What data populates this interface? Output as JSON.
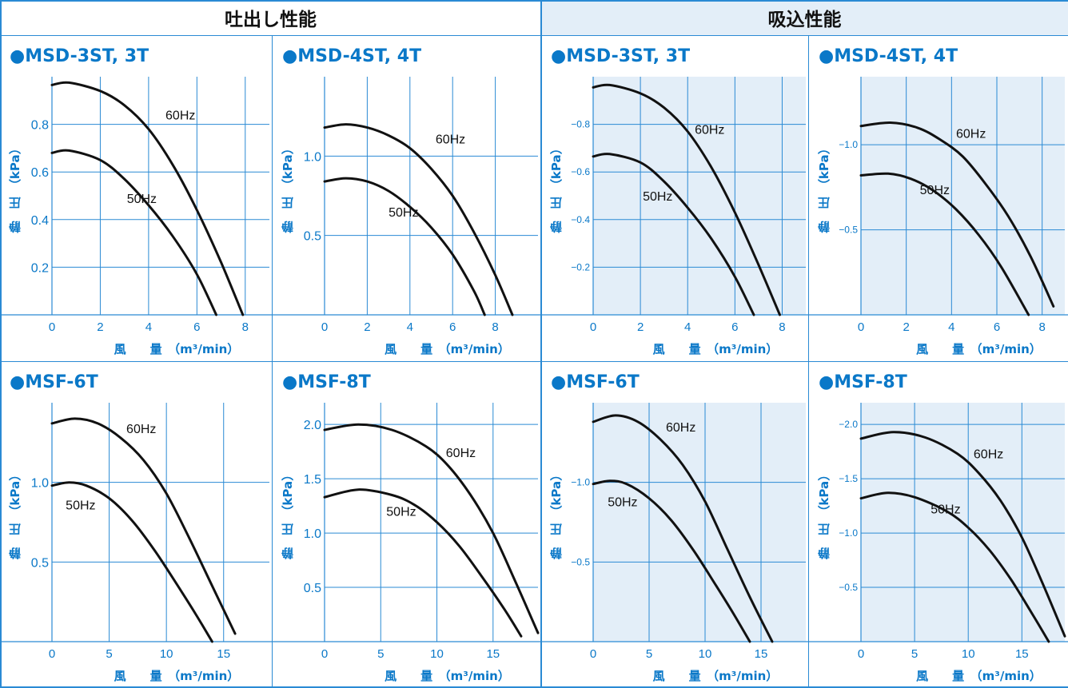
{
  "sections": {
    "discharge": "吐出し性能",
    "suction": "吸込性能"
  },
  "colors": {
    "accent": "#0a78c8",
    "grid": "#2a8ad4",
    "suction_bg": "#e3eef8",
    "curve": "#111111"
  },
  "chart_data": [
    {
      "type": "line",
      "title": "●MSD-3ST, 3T",
      "section": "吐出し性能",
      "xlabel": "風　　量　（m³/min）",
      "ylabel": "静　圧　（kPa）",
      "xlim": [
        0,
        9
      ],
      "ylim": [
        0,
        1.0
      ],
      "xticks": [
        0,
        2,
        4,
        6,
        8
      ],
      "yticks": [
        0.2,
        0.4,
        0.6,
        0.8
      ],
      "series": [
        {
          "name": "60Hz",
          "label_at": [
            4.7,
            0.82
          ],
          "x": [
            0,
            0.7,
            2,
            3,
            4,
            5,
            6,
            7,
            7.9
          ],
          "y": [
            0.965,
            0.975,
            0.94,
            0.88,
            0.78,
            0.63,
            0.44,
            0.22,
            0.0
          ]
        },
        {
          "name": "50Hz",
          "label_at": [
            3.1,
            0.47
          ],
          "x": [
            0,
            0.7,
            2,
            3,
            4,
            5,
            6,
            6.8
          ],
          "y": [
            0.68,
            0.69,
            0.65,
            0.57,
            0.46,
            0.33,
            0.17,
            0.0
          ]
        }
      ]
    },
    {
      "type": "line",
      "title": "●MSD-4ST, 4T",
      "section": "吐出し性能",
      "xlabel": "風　　量　（m³/min）",
      "ylabel": "静　圧　（kPa）",
      "xlim": [
        0,
        10
      ],
      "ylim": [
        0,
        1.5
      ],
      "xticks": [
        0,
        2,
        4,
        6,
        8
      ],
      "yticks": [
        0.5,
        1.0
      ],
      "series": [
        {
          "name": "60Hz",
          "label_at": [
            5.2,
            1.08
          ],
          "x": [
            0,
            1,
            2,
            3,
            4,
            5,
            6,
            7,
            8,
            8.8
          ],
          "y": [
            1.18,
            1.2,
            1.18,
            1.13,
            1.05,
            0.92,
            0.75,
            0.52,
            0.25,
            0.0
          ]
        },
        {
          "name": "50Hz",
          "label_at": [
            3.0,
            0.62
          ],
          "x": [
            0,
            1,
            2,
            3,
            4,
            5,
            6,
            7,
            7.5
          ],
          "y": [
            0.84,
            0.86,
            0.84,
            0.78,
            0.68,
            0.55,
            0.38,
            0.15,
            0.0
          ]
        }
      ]
    },
    {
      "type": "line",
      "title": "●MSD-3ST, 3T",
      "section": "吸込性能",
      "xlabel": "風　　量　（m³/min）",
      "ylabel": "静　圧　（kPa）",
      "xlim": [
        0,
        9
      ],
      "ylim": [
        -1.0,
        0
      ],
      "xticks": [
        0,
        2,
        4,
        6,
        8
      ],
      "yticks": [
        -0.2,
        -0.4,
        -0.6,
        -0.8
      ],
      "series": [
        {
          "name": "60Hz",
          "label_at": [
            4.3,
            -0.76
          ],
          "x": [
            0,
            0.7,
            2,
            3,
            4,
            5,
            6,
            7,
            7.9
          ],
          "y": [
            -0.955,
            -0.965,
            -0.93,
            -0.87,
            -0.77,
            -0.62,
            -0.43,
            -0.21,
            0.0
          ]
        },
        {
          "name": "50Hz",
          "label_at": [
            2.1,
            -0.48
          ],
          "x": [
            0,
            0.7,
            2,
            3,
            4,
            5,
            6,
            6.8
          ],
          "y": [
            -0.665,
            -0.675,
            -0.64,
            -0.56,
            -0.45,
            -0.32,
            -0.16,
            0.0
          ]
        }
      ]
    },
    {
      "type": "line",
      "title": "●MSD-4ST, 4T",
      "section": "吸込性能",
      "xlabel": "風　　量　（m³/min）",
      "ylabel": "静　圧　（kPa）",
      "xlim": [
        0,
        9
      ],
      "ylim": [
        -1.4,
        0
      ],
      "xticks": [
        0,
        2,
        4,
        6,
        8
      ],
      "yticks": [
        -0.5,
        -1.0
      ],
      "series": [
        {
          "name": "60Hz",
          "label_at": [
            4.2,
            -1.04
          ],
          "x": [
            0,
            1.3,
            2.5,
            3.5,
            4.5,
            5.5,
            6.5,
            7.5,
            8.5
          ],
          "y": [
            -1.11,
            -1.13,
            -1.1,
            -1.03,
            -0.93,
            -0.77,
            -0.58,
            -0.34,
            -0.05
          ]
        },
        {
          "name": "50Hz",
          "label_at": [
            2.6,
            -0.71
          ],
          "x": [
            0,
            1.2,
            2.2,
            3.2,
            4.2,
            5.2,
            6.2,
            7.4
          ],
          "y": [
            -0.82,
            -0.83,
            -0.8,
            -0.73,
            -0.62,
            -0.47,
            -0.28,
            0.0
          ]
        }
      ]
    },
    {
      "type": "line",
      "title": "●MSF-6T",
      "section": "吐出し性能",
      "xlabel": "風　　量　（m³/min）",
      "ylabel": "静　圧　（kPa）",
      "xlim": [
        0,
        19
      ],
      "ylim": [
        0,
        1.5
      ],
      "xticks": [
        0,
        5,
        10,
        15
      ],
      "yticks": [
        0.5,
        1.0
      ],
      "series": [
        {
          "name": "60Hz",
          "label_at": [
            6.5,
            1.31
          ],
          "x": [
            0,
            2,
            4,
            6,
            8,
            10,
            12,
            14,
            16
          ],
          "y": [
            1.37,
            1.4,
            1.37,
            1.28,
            1.14,
            0.93,
            0.65,
            0.35,
            0.05
          ]
        },
        {
          "name": "50Hz",
          "label_at": [
            1.2,
            0.83
          ],
          "x": [
            0,
            1.5,
            3,
            5,
            7,
            9,
            11,
            12.5,
            14
          ],
          "y": [
            0.98,
            1.0,
            0.98,
            0.9,
            0.76,
            0.57,
            0.35,
            0.18,
            0.0
          ]
        }
      ]
    },
    {
      "type": "line",
      "title": "●MSF-8T",
      "section": "吐出し性能",
      "xlabel": "風　　量　（m³/min）",
      "ylabel": "静　圧　（kPa）",
      "xlim": [
        0,
        19
      ],
      "ylim": [
        0,
        2.2
      ],
      "xticks": [
        0,
        5,
        10,
        15
      ],
      "yticks": [
        0.5,
        1.0,
        1.5,
        2.0
      ],
      "series": [
        {
          "name": "60Hz",
          "label_at": [
            10.8,
            1.7
          ],
          "x": [
            0,
            3,
            6,
            9,
            11,
            13,
            15,
            17,
            19
          ],
          "y": [
            1.95,
            2.0,
            1.95,
            1.8,
            1.62,
            1.35,
            1.0,
            0.55,
            0.08
          ]
        },
        {
          "name": "50Hz",
          "label_at": [
            5.5,
            1.16
          ],
          "x": [
            0,
            3,
            6,
            8,
            10,
            12,
            14,
            16,
            17.5
          ],
          "y": [
            1.33,
            1.4,
            1.35,
            1.26,
            1.1,
            0.88,
            0.6,
            0.3,
            0.05
          ]
        }
      ]
    },
    {
      "type": "line",
      "title": "●MSF-6T",
      "section": "吸込性能",
      "xlabel": "風　　量　（m³/min）",
      "ylabel": "静　圧　（kPa）",
      "xlim": [
        0,
        19
      ],
      "ylim": [
        -1.5,
        0
      ],
      "xticks": [
        0,
        5,
        10,
        15
      ],
      "yticks": [
        -0.5,
        -1.0
      ],
      "series": [
        {
          "name": "60Hz",
          "label_at": [
            6.5,
            -1.32
          ],
          "x": [
            0,
            2,
            4,
            6,
            8,
            10,
            12,
            14,
            16
          ],
          "y": [
            -1.38,
            -1.42,
            -1.38,
            -1.27,
            -1.11,
            -0.88,
            -0.58,
            -0.28,
            0.0
          ]
        },
        {
          "name": "50Hz",
          "label_at": [
            1.3,
            -0.85
          ],
          "x": [
            0,
            1.5,
            3,
            5,
            7,
            9,
            11,
            12.5,
            14
          ],
          "y": [
            -0.99,
            -1.01,
            -0.99,
            -0.9,
            -0.76,
            -0.57,
            -0.35,
            -0.18,
            0.0
          ]
        }
      ]
    },
    {
      "type": "line",
      "title": "●MSF-8T",
      "section": "吸込性能",
      "xlabel": "風　　量　（m³/min）",
      "ylabel": "静　圧　（kPa）",
      "xlim": [
        0,
        19
      ],
      "ylim": [
        -2.2,
        0
      ],
      "xticks": [
        0,
        5,
        10,
        15
      ],
      "yticks": [
        -0.5,
        -1.0,
        -1.5,
        -2.0
      ],
      "series": [
        {
          "name": "60Hz",
          "label_at": [
            10.5,
            -1.69
          ],
          "x": [
            0,
            3,
            6,
            9,
            11,
            13,
            15,
            17,
            19
          ],
          "y": [
            -1.87,
            -1.93,
            -1.88,
            -1.73,
            -1.55,
            -1.3,
            -0.96,
            -0.52,
            -0.05
          ]
        },
        {
          "name": "50Hz",
          "label_at": [
            6.5,
            -1.18
          ],
          "x": [
            0,
            2.5,
            5,
            8,
            10,
            12,
            14,
            16,
            17.5
          ],
          "y": [
            -1.32,
            -1.37,
            -1.33,
            -1.2,
            -1.05,
            -0.84,
            -0.57,
            -0.25,
            0.0
          ]
        }
      ]
    }
  ]
}
